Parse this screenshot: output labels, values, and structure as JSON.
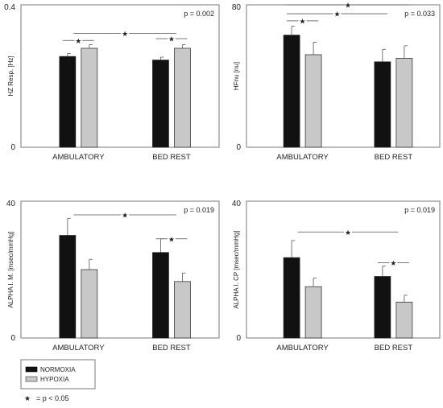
{
  "chart_data": [
    {
      "type": "bar",
      "ylabel": "HZ Resp. [Hz]",
      "ylim": [
        0,
        0.4
      ],
      "y_tick_labels": [
        "0",
        "0.4"
      ],
      "p_value": "p = 0.002",
      "categories": [
        "AMBULATORY",
        "BED REST"
      ],
      "series": [
        {
          "name": "NORMOXIA",
          "values": [
            0.255,
            0.245
          ],
          "errors": [
            0.008,
            0.008
          ]
        },
        {
          "name": "HYPOXIA",
          "values": [
            0.278,
            0.278
          ],
          "errors": [
            0.01,
            0.01
          ]
        }
      ],
      "significance": [
        {
          "from": "AMBULATORY.NORMOXIA",
          "to": "AMBULATORY.HYPOXIA",
          "y": 0.3
        },
        {
          "from": "AMBULATORY",
          "to": "BED REST",
          "y": 0.32
        },
        {
          "from": "BED REST.NORMOXIA",
          "to": "BED REST.HYPOXIA",
          "y": 0.305
        }
      ]
    },
    {
      "type": "bar",
      "ylabel": "HFnu [nu]",
      "ylim": [
        0,
        80
      ],
      "y_tick_labels": [
        "0",
        "80"
      ],
      "p_value": "p = 0.033",
      "categories": [
        "AMBULATORY",
        "BED REST"
      ],
      "series": [
        {
          "name": "NORMOXIA",
          "values": [
            63,
            48
          ],
          "errors": [
            5,
            7
          ]
        },
        {
          "name": "HYPOXIA",
          "values": [
            52,
            50
          ],
          "errors": [
            7,
            7
          ]
        }
      ],
      "significance": [
        {
          "from": "AMBULATORY.NORMOXIA",
          "to": "AMBULATORY.HYPOXIA",
          "y": 71
        },
        {
          "from": "AMBULATORY.NORMOXIA",
          "to": "BED REST.NORMOXIA",
          "y": 75
        },
        {
          "from": "AMBULATORY.NORMOXIA",
          "to": "BED REST.HYPOXIA",
          "y": 80
        }
      ]
    },
    {
      "type": "bar",
      "ylabel": "ALPHA I. M. [msec/mmHg]",
      "ylim": [
        0,
        40
      ],
      "y_tick_labels": [
        "0",
        "40"
      ],
      "p_value": "p = 0.019",
      "categories": [
        "AMBULATORY",
        "BED REST"
      ],
      "series": [
        {
          "name": "NORMOXIA",
          "values": [
            30,
            25
          ],
          "errors": [
            5,
            4
          ]
        },
        {
          "name": "HYPOXIA",
          "values": [
            20,
            16.5
          ],
          "errors": [
            3,
            2.5
          ]
        }
      ],
      "significance": [
        {
          "from": "AMBULATORY",
          "to": "BED REST",
          "y": 36
        },
        {
          "from": "BED REST.NORMOXIA",
          "to": "BED REST.HYPOXIA",
          "y": 29
        }
      ]
    },
    {
      "type": "bar",
      "ylabel": "ALPHA I. CP [msec/mmHg]",
      "ylim": [
        0,
        40
      ],
      "y_tick_labels": [
        "0",
        "40"
      ],
      "p_value": "p = 0.019",
      "categories": [
        "AMBULATORY",
        "BED REST"
      ],
      "series": [
        {
          "name": "NORMOXIA",
          "values": [
            23.5,
            18
          ],
          "errors": [
            5,
            3
          ]
        },
        {
          "name": "HYPOXIA",
          "values": [
            15,
            10.5
          ],
          "errors": [
            2.5,
            2
          ]
        }
      ],
      "significance": [
        {
          "from": "AMBULATORY",
          "to": "BED REST",
          "y": 31
        },
        {
          "from": "BED REST.NORMOXIA",
          "to": "BED REST.HYPOXIA",
          "y": 22
        }
      ]
    }
  ],
  "legend": {
    "items": [
      {
        "label": "NORMOXIA",
        "color": "#111111"
      },
      {
        "label": "HYPOXIA",
        "color": "#c8c8c8"
      }
    ],
    "note": "= p < 0.05",
    "star": "★"
  },
  "colors": {
    "normoxia": "#111111",
    "hypoxia": "#c8c8c8",
    "frame": "#777777"
  }
}
